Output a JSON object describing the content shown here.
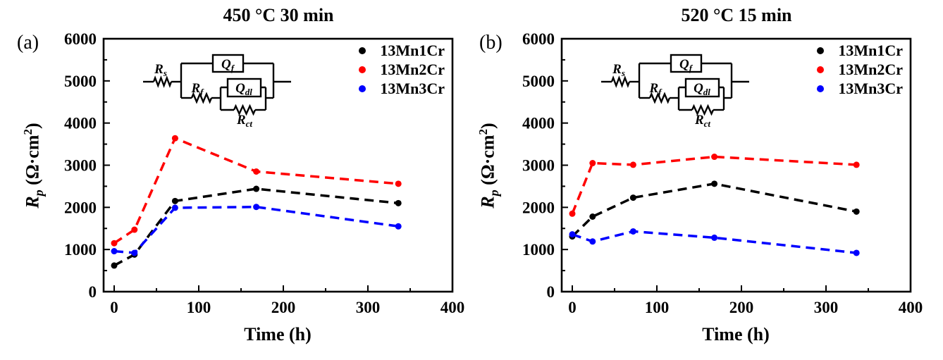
{
  "chart_data": [
    {
      "type": "line",
      "panel_label": "(a)",
      "title": "450 °C 30 min",
      "xlabel": "Time (h)",
      "ylabel": "Rp (Ω·cm²)",
      "ylabel_parts": {
        "base": "R",
        "sub": "p",
        "units": " (Ω·cm",
        "units_sup": "2",
        "units_close": ")"
      },
      "x": [
        0,
        24,
        72,
        168,
        336
      ],
      "series": [
        {
          "name": "13Mn1Cr",
          "color": "#000000",
          "values": [
            620,
            880,
            2150,
            2440,
            2100
          ]
        },
        {
          "name": "13Mn2Cr",
          "color": "#ff0000",
          "values": [
            1150,
            1470,
            3640,
            2850,
            2560
          ]
        },
        {
          "name": "13Mn3Cr",
          "color": "#0000ff",
          "values": [
            960,
            920,
            1990,
            2010,
            1550
          ]
        }
      ],
      "xlim": [
        -12.5,
        400
      ],
      "ylim": [
        0,
        6000
      ],
      "x_major_ticks": [
        0,
        100,
        200,
        300,
        400
      ],
      "x_minor_ticks": [
        50,
        150,
        250,
        350
      ],
      "y_major_ticks": [
        0,
        1000,
        2000,
        3000,
        4000,
        5000,
        6000
      ],
      "y_minor_ticks": [
        500,
        1500,
        2500,
        3500,
        4500,
        5500
      ],
      "line_style": "dashed",
      "marker": "circle",
      "grid": false,
      "legend_position": "top-right",
      "inset_circuit": {
        "labels": {
          "rs": {
            "base": "R",
            "sub": "s"
          },
          "qf": {
            "base": "Q",
            "sub": "f"
          },
          "rf": {
            "base": "R",
            "sub": "f"
          },
          "qdl": {
            "base": "Q",
            "sub": "dl"
          },
          "rct": {
            "base": "R",
            "sub": "ct"
          }
        }
      }
    },
    {
      "type": "line",
      "panel_label": "(b)",
      "title": "520 °C 15 min",
      "xlabel": "Time (h)",
      "ylabel": "Rp (Ω·cm²)",
      "ylabel_parts": {
        "base": "R",
        "sub": "p",
        "units": " (Ω·cm",
        "units_sup": "2",
        "units_close": ")"
      },
      "x": [
        0,
        24,
        72,
        168,
        336
      ],
      "series": [
        {
          "name": "13Mn1Cr",
          "color": "#000000",
          "values": [
            1310,
            1780,
            2230,
            2560,
            1900
          ]
        },
        {
          "name": "13Mn2Cr",
          "color": "#ff0000",
          "values": [
            1850,
            3050,
            3010,
            3200,
            3010
          ]
        },
        {
          "name": "13Mn3Cr",
          "color": "#0000ff",
          "values": [
            1360,
            1190,
            1430,
            1280,
            920
          ]
        }
      ],
      "xlim": [
        -12.5,
        400
      ],
      "ylim": [
        0,
        6000
      ],
      "x_major_ticks": [
        0,
        100,
        200,
        300,
        400
      ],
      "x_minor_ticks": [
        50,
        150,
        250,
        350
      ],
      "y_major_ticks": [
        0,
        1000,
        2000,
        3000,
        4000,
        5000,
        6000
      ],
      "y_minor_ticks": [
        500,
        1500,
        2500,
        3500,
        4500,
        5500
      ],
      "line_style": "dashed",
      "marker": "circle",
      "grid": false,
      "legend_position": "top-right",
      "inset_circuit": {
        "labels": {
          "rs": {
            "base": "R",
            "sub": "s"
          },
          "qf": {
            "base": "Q",
            "sub": "f"
          },
          "rf": {
            "base": "R",
            "sub": "f"
          },
          "qdl": {
            "base": "Q",
            "sub": "dl"
          },
          "rct": {
            "base": "R",
            "sub": "ct"
          }
        }
      }
    }
  ]
}
